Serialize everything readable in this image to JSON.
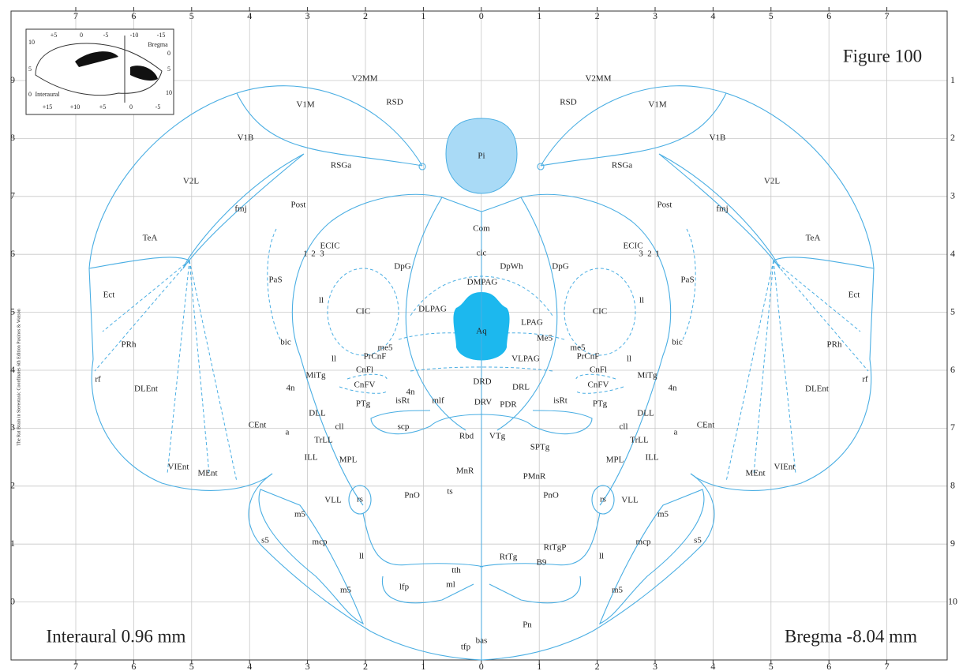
{
  "figure": "Figure 100",
  "interaural": "Interaural 0.96 mm",
  "bregma": "Bregma -8.04 mm",
  "spine": "The Rat Brain in Stereotaxic Coordinates 6th Edition Paxinos & Watson",
  "axes": {
    "top": [
      7,
      6,
      5,
      4,
      3,
      2,
      1,
      0,
      1,
      2,
      3,
      4,
      5,
      6,
      7
    ],
    "bottom": [
      7,
      6,
      5,
      4,
      3,
      2,
      1,
      0,
      1,
      2,
      3,
      4,
      5,
      6,
      7
    ],
    "left": [
      9,
      8,
      7,
      6,
      5,
      4,
      3,
      2,
      1,
      0
    ],
    "right": [
      1,
      2,
      3,
      4,
      5,
      6,
      7,
      8,
      9,
      10
    ]
  },
  "inset": {
    "top": [
      "+5",
      "0",
      "-5",
      "-10",
      "-15"
    ],
    "bregma": "Bregma",
    "interaural": "Interaural",
    "bottom": [
      "+15",
      "+10",
      "+5",
      "0",
      "-5"
    ],
    "left": [
      "10",
      "5",
      "0"
    ],
    "right": [
      "0",
      "5",
      "10"
    ]
  },
  "regions": {
    "bilateral": [
      "V1M",
      "V2MM",
      "RSD",
      "V1B",
      "RSGa",
      "V2L",
      "fmj",
      "Post",
      "TeA",
      "ECIC",
      "1",
      "2",
      "3",
      "PaS",
      "Ect",
      "ll",
      "CIC",
      "DpG",
      "PRh",
      "bic",
      "me5",
      "PrCnF",
      "ll",
      "MiTg",
      "CnFl",
      "rf",
      "DLEnt",
      "CnFV",
      "4n",
      "isRt",
      "PTg",
      "DLL",
      "cll",
      "CEnt",
      "a",
      "TrLL",
      "ILL",
      "MPL",
      "VIEnt",
      "MEnt",
      "rs",
      "VLL",
      "PnO",
      "m5",
      "s5",
      "mcp",
      "ll",
      "m5"
    ],
    "single": [
      "Pi",
      "Com",
      "cic",
      "DMPAG",
      "DpWh",
      "DLPAG",
      "LPAG",
      "Aq",
      "Me5",
      "VLPAG",
      "4n",
      "DRD",
      "DRL",
      "mlf",
      "DRV",
      "PDR",
      "scp",
      "Rbd",
      "VTg",
      "SPTg",
      "MnR",
      "PMnR",
      "ts",
      "RtTgP",
      "RtTg",
      "B9",
      "tth",
      "ml",
      "lfp",
      "Pn",
      "bas",
      "tfp"
    ]
  }
}
